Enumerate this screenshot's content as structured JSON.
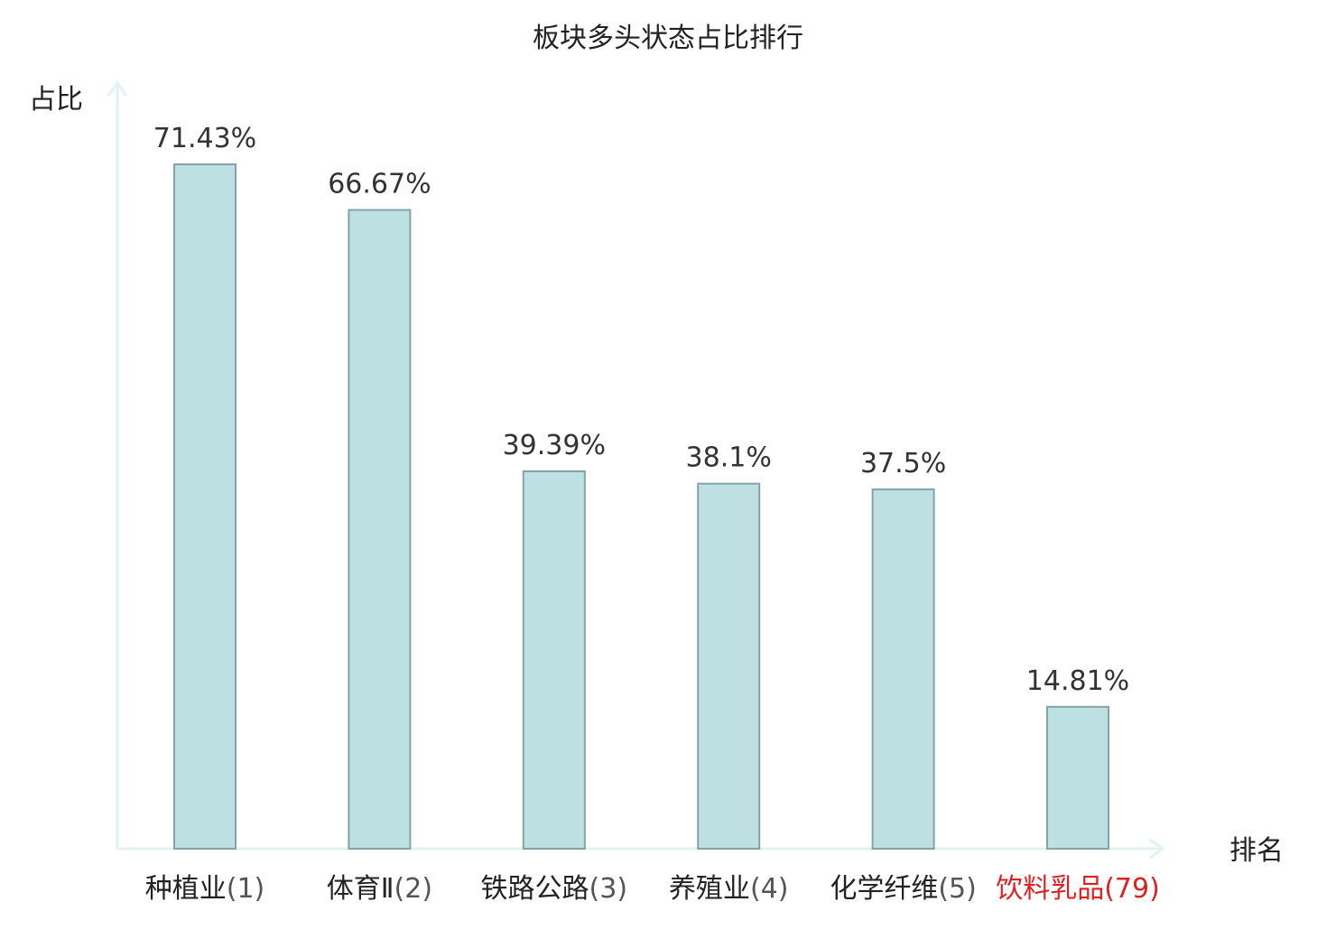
{
  "chart_data": {
    "type": "bar",
    "title": "板块多头状态占比排行",
    "xlabel": "排名",
    "ylabel": "占比",
    "categories": [
      {
        "name": "种植业",
        "rank": "(1)"
      },
      {
        "name": "体育Ⅱ",
        "rank": "(2)"
      },
      {
        "name": "铁路公路",
        "rank": "(3)"
      },
      {
        "name": "养殖业",
        "rank": "(4)"
      },
      {
        "name": "化学纤维",
        "rank": "(5)"
      },
      {
        "name": "饮料乳品",
        "rank": "(79)"
      }
    ],
    "values": [
      71.43,
      66.67,
      39.39,
      38.1,
      37.5,
      14.81
    ],
    "value_labels": [
      "71.43%",
      "66.67%",
      "39.39%",
      "38.1%",
      "37.5%",
      "14.81%"
    ],
    "highlight_index": 5,
    "ylim": [
      0,
      71.43
    ],
    "grid": false,
    "legend": "none"
  },
  "colors": {
    "bar_fill": "#bde0e3",
    "bar_stroke": "#84a3a6",
    "axis": "#e1f2f0",
    "text": "#222222",
    "value_text": "#333333",
    "rank_text": "#555555",
    "highlight": "#e02020"
  }
}
